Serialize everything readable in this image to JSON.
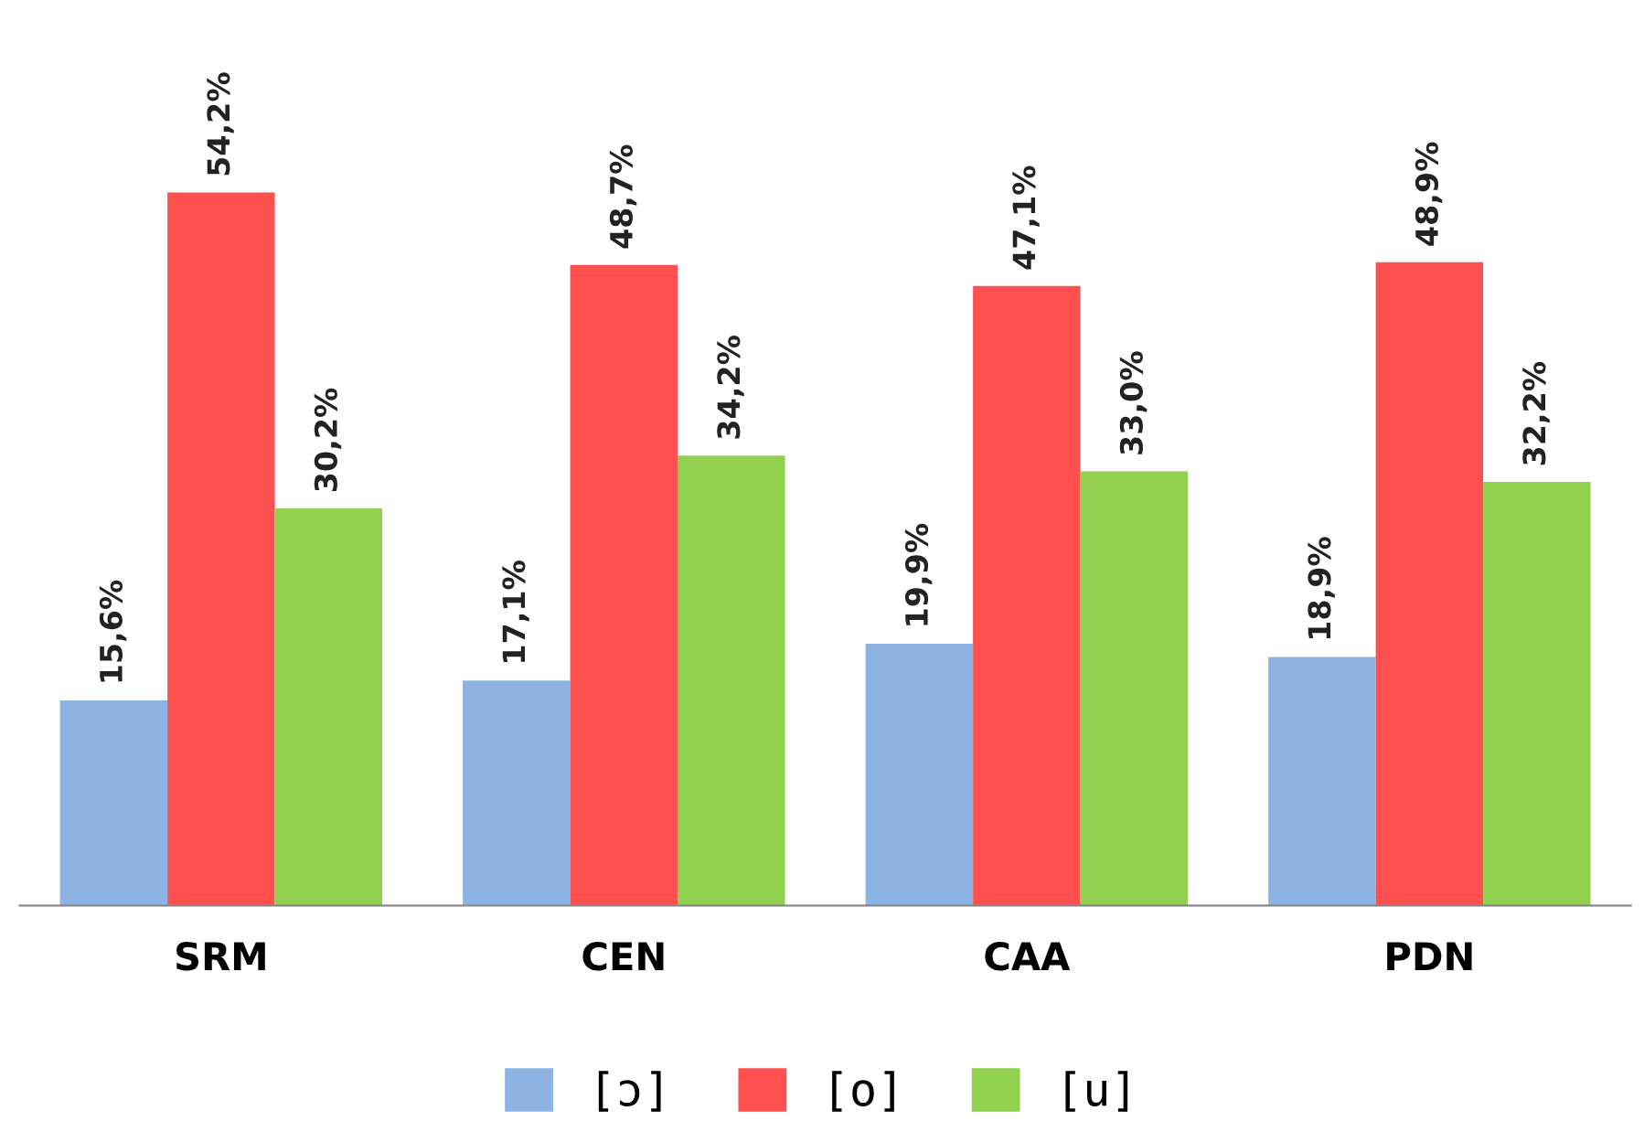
{
  "chart_data": {
    "type": "bar",
    "categories": [
      "SRM",
      "CEN",
      "CAA",
      "PDN"
    ],
    "series": [
      {
        "name": "[ɔ]",
        "color": "#8db3e2",
        "values": [
          15.6,
          17.1,
          19.9,
          18.9
        ],
        "value_labels": [
          "15,6%",
          "17,1%",
          "19,9%",
          "18,9%"
        ]
      },
      {
        "name": "[o]",
        "color": "#ff5050",
        "values": [
          54.2,
          48.7,
          47.1,
          48.9
        ],
        "value_labels": [
          "54,2%",
          "48,7%",
          "47,1%",
          "48,9%"
        ]
      },
      {
        "name": "[u]",
        "color": "#92d050",
        "values": [
          30.2,
          34.2,
          33.0,
          32.2
        ],
        "value_labels": [
          "30,2%",
          "34,2%",
          "33,0%",
          "32,2%"
        ]
      }
    ],
    "legend": "bottom",
    "grid": false
  }
}
